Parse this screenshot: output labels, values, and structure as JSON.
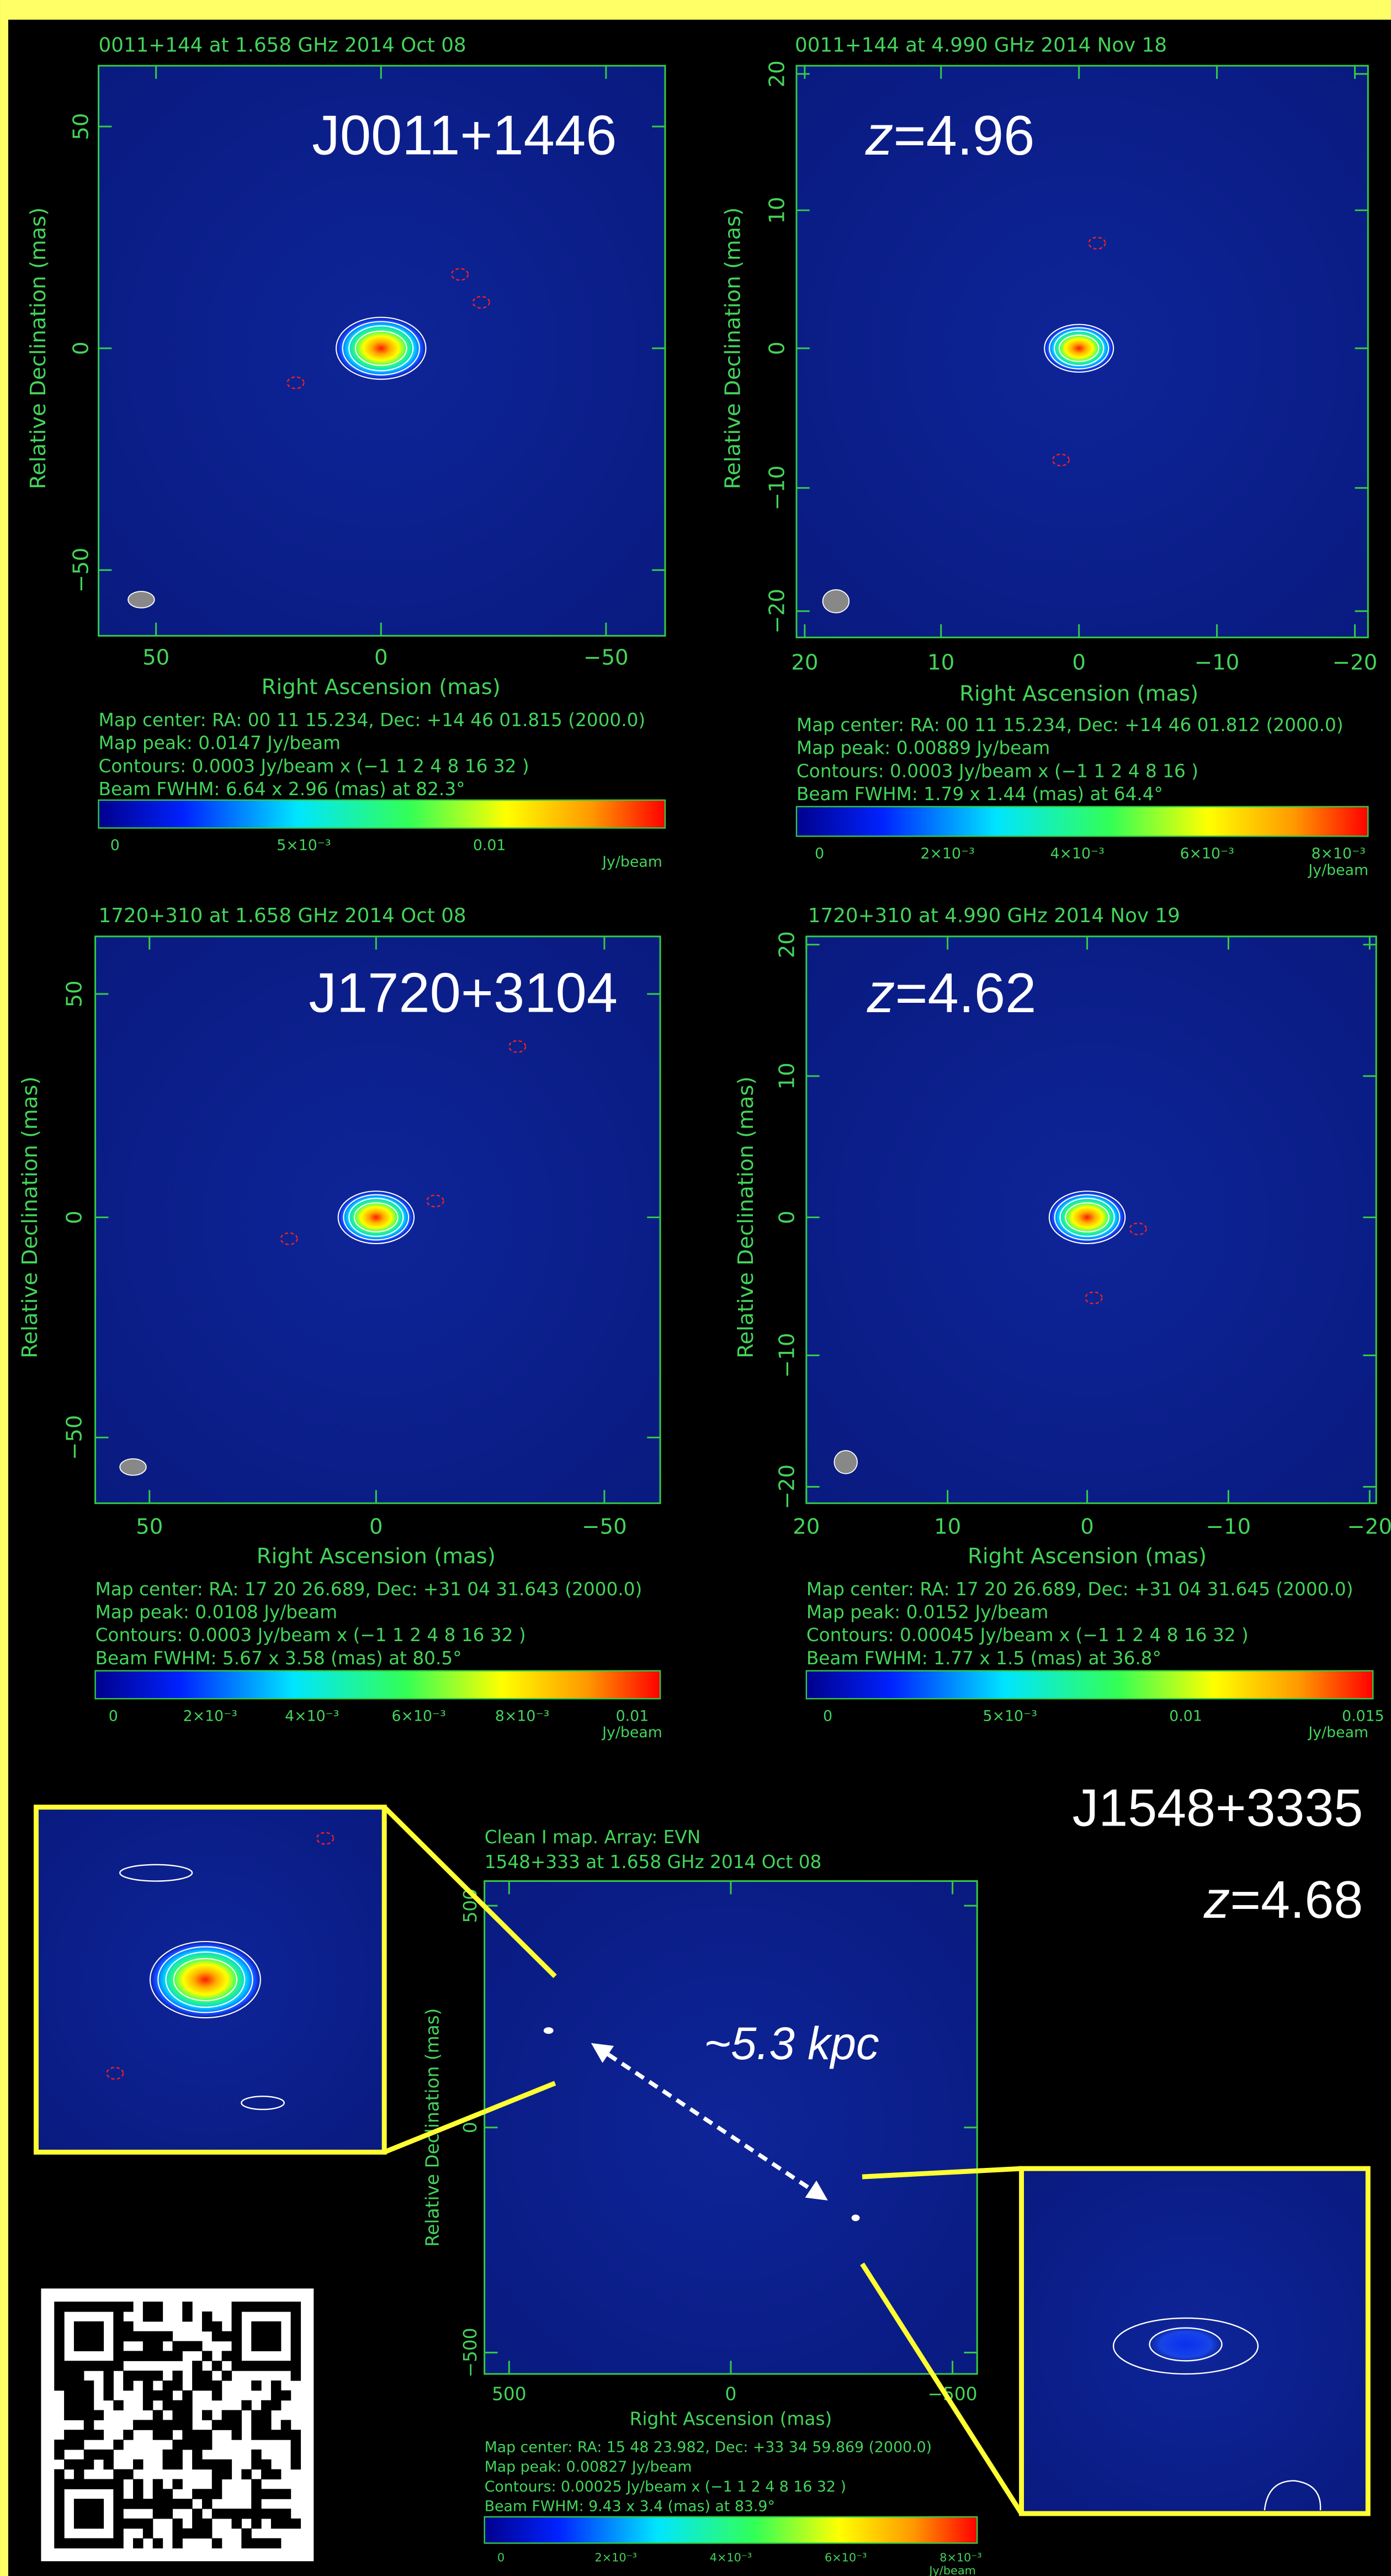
{
  "panels": [
    {
      "title": "0011+144 at 1.658 GHz 2014 Oct 08",
      "source": "J0011+1446",
      "yticks": [
        "50",
        "0",
        "−50"
      ],
      "xticks": [
        "50",
        "0",
        "−50"
      ],
      "xlabel": "Right Ascension (mas)",
      "ylabel": "Relative Declination (mas)",
      "info": [
        "Map center: RA: 00 11 15.234, Dec: +14 46 01.815 (2000.0)",
        "Map peak: 0.0147 Jy/beam",
        "Contours: 0.0003 Jy/beam x (−1 1 2 4 8 16 32 )",
        "Beam FWHM: 6.64 x 2.96 (mas) at 82.3°"
      ],
      "colorbar_ticks": [
        "0",
        "5×10⁻³",
        "0.01"
      ],
      "colorbar_unit": "Jy/beam"
    },
    {
      "title": "0011+144 at 4.990 GHz 2014 Nov 18",
      "label_var": "z",
      "label_rest": "=4.96",
      "yticks": [
        "20",
        "10",
        "0",
        "−10",
        "−20"
      ],
      "xticks": [
        "20",
        "10",
        "0",
        "−10",
        "−20"
      ],
      "xlabel": "Right Ascension (mas)",
      "ylabel": "Relative Declination (mas)",
      "info": [
        "Map center: RA: 00 11 15.234, Dec: +14 46 01.812 (2000.0)",
        "Map peak: 0.00889 Jy/beam",
        "Contours: 0.0003 Jy/beam x (−1 1 2 4 8 16 )",
        "Beam FWHM: 1.79 x 1.44 (mas) at 64.4°"
      ],
      "colorbar_ticks": [
        "0",
        "2×10⁻³",
        "4×10⁻³",
        "6×10⁻³",
        "8×10⁻³"
      ],
      "colorbar_unit": "Jy/beam"
    },
    {
      "title": "1720+310 at 1.658 GHz 2014 Oct 08",
      "source": "J1720+3104",
      "yticks": [
        "50",
        "0",
        "−50"
      ],
      "xticks": [
        "50",
        "0",
        "−50"
      ],
      "xlabel": "Right Ascension (mas)",
      "ylabel": "Relative Declination (mas)",
      "info": [
        "Map center: RA: 17 20 26.689, Dec: +31 04 31.643 (2000.0)",
        "Map peak: 0.0108 Jy/beam",
        "Contours: 0.0003 Jy/beam x (−1 1 2 4 8 16 32 )",
        "Beam FWHM: 5.67 x 3.58 (mas) at 80.5°"
      ],
      "colorbar_ticks": [
        "0",
        "2×10⁻³",
        "4×10⁻³",
        "6×10⁻³",
        "8×10⁻³",
        "0.01"
      ],
      "colorbar_unit": "Jy/beam"
    },
    {
      "title": "1720+310 at 4.990 GHz 2014 Nov 19",
      "label_var": "z",
      "label_rest": "=4.62",
      "yticks": [
        "20",
        "10",
        "0",
        "−10",
        "−20"
      ],
      "xticks": [
        "20",
        "10",
        "0",
        "−10",
        "−20"
      ],
      "xlabel": "Right Ascension (mas)",
      "ylabel": "Relative Declination (mas)",
      "info": [
        "Map center: RA: 17 20 26.689, Dec: +31 04 31.645 (2000.0)",
        "Map peak: 0.0152 Jy/beam",
        "Contours: 0.00045 Jy/beam x (−1 1 2 4 8 16 32 )",
        "Beam FWHM: 1.77 x 1.5 (mas) at 36.8°"
      ],
      "colorbar_ticks": [
        "0",
        "5×10⁻³",
        "0.01",
        "0.015"
      ],
      "colorbar_unit": "Jy/beam"
    },
    {
      "header": "Clean I map. Array: EVN",
      "title": "1548+333 at 1.658 GHz 2014 Oct 08",
      "yticks": [
        "500",
        "0",
        "−500"
      ],
      "xticks": [
        "500",
        "0",
        "−500"
      ],
      "xlabel": "Right Ascension (mas)",
      "ylabel": "Relative Declination (mas)",
      "info": [
        "Map center: RA: 15 48 23.982, Dec: +33 34 59.869 (2000.0)",
        "Map peak: 0.00827 Jy/beam",
        "Contours: 0.00025 Jy/beam x (−1 1 2 4 8 16 32 )",
        "Beam FWHM: 9.43 x 3.4 (mas) at 83.9°"
      ],
      "colorbar_ticks": [
        "0",
        "2×10⁻³",
        "4×10⁻³",
        "6×10⁻³",
        "8×10⁻³"
      ],
      "colorbar_unit": "Jy/beam"
    }
  ],
  "bottom": {
    "source": "J1548+3335",
    "label_var": "z",
    "label_rest": "=4.68",
    "separation": "~5.3 kpc"
  }
}
